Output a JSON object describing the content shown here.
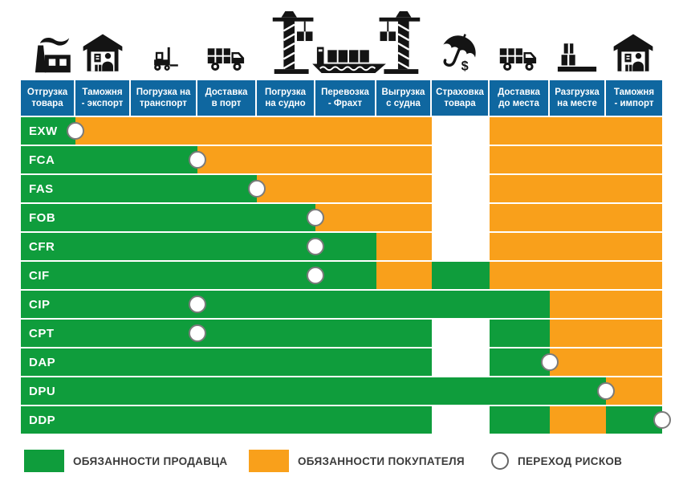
{
  "colors": {
    "seller_green": "#0f9d3c",
    "buyer_orange": "#f9a01b",
    "header_blue": "#0f67a0",
    "uncovered_white": "#ffffff",
    "risk_circle_border": "#7b7b7b",
    "icon_black": "#141414",
    "legend_text": "#3b3b3b"
  },
  "header": {
    "columns": [
      {
        "label": "Отгрузка\nтовара"
      },
      {
        "label": "Таможня\n- экспорт"
      },
      {
        "label": "Погрузка на\nтранспорт"
      },
      {
        "label": "Доставка\nв порт"
      },
      {
        "label": "Погрузка\nна судно"
      },
      {
        "label": "Перевозка\n- Фрахт"
      },
      {
        "label": "Выгрузка\nс судна"
      },
      {
        "label": "Страховка\nтовара"
      },
      {
        "label": "Доставка\nдо места"
      },
      {
        "label": "Разгрузка\nна месте"
      },
      {
        "label": "Таможня\n- импорт"
      }
    ]
  },
  "icons": [
    "factory-icon",
    "customs-export-warehouse-icon",
    "forklift-icon",
    "delivery-truck-icon",
    "port-crane-icon",
    "container-ship-icon",
    "port-crane-icon",
    "insurance-umbrella-dollar-icon",
    "delivery-truck-icon",
    "cargo-boxes-icon",
    "customs-import-warehouse-icon"
  ],
  "rows": [
    {
      "code": "EXW",
      "cells": [
        "S",
        "B",
        "B",
        "B",
        "B",
        "B",
        "B",
        "N",
        "B",
        "B",
        "B"
      ],
      "risk_after": 1
    },
    {
      "code": "FCA",
      "cells": [
        "S",
        "S",
        "S",
        "B",
        "B",
        "B",
        "B",
        "N",
        "B",
        "B",
        "B"
      ],
      "risk_after": 3
    },
    {
      "code": "FAS",
      "cells": [
        "S",
        "S",
        "S",
        "S",
        "B",
        "B",
        "B",
        "N",
        "B",
        "B",
        "B"
      ],
      "risk_after": 4
    },
    {
      "code": "FOB",
      "cells": [
        "S",
        "S",
        "S",
        "S",
        "S",
        "B",
        "B",
        "N",
        "B",
        "B",
        "B"
      ],
      "risk_after": 5
    },
    {
      "code": "CFR",
      "cells": [
        "S",
        "S",
        "S",
        "S",
        "S",
        "S",
        "B",
        "N",
        "B",
        "B",
        "B"
      ],
      "risk_after": 5
    },
    {
      "code": "CIF",
      "cells": [
        "S",
        "S",
        "S",
        "S",
        "S",
        "S",
        "B",
        "S",
        "B",
        "B",
        "B"
      ],
      "risk_after": 5
    },
    {
      "code": "CIP",
      "cells": [
        "S",
        "S",
        "S",
        "S",
        "S",
        "S",
        "S",
        "S",
        "S",
        "B",
        "B"
      ],
      "risk_after": 3
    },
    {
      "code": "CPT",
      "cells": [
        "S",
        "S",
        "S",
        "S",
        "S",
        "S",
        "S",
        "N",
        "S",
        "B",
        "B"
      ],
      "risk_after": 3
    },
    {
      "code": "DAP",
      "cells": [
        "S",
        "S",
        "S",
        "S",
        "S",
        "S",
        "S",
        "N",
        "S",
        "B",
        "B"
      ],
      "risk_after": 9
    },
    {
      "code": "DPU",
      "cells": [
        "S",
        "S",
        "S",
        "S",
        "S",
        "S",
        "S",
        "S",
        "S",
        "S",
        "B"
      ],
      "risk_after": 10
    },
    {
      "code": "DDP",
      "cells": [
        "S",
        "S",
        "S",
        "S",
        "S",
        "S",
        "S",
        "N",
        "S",
        "B",
        "S"
      ],
      "risk_after": 11
    }
  ],
  "legend": {
    "seller": "ОБЯЗАННОСТИ ПРОДАВЦА",
    "buyer": "ОБЯЗАННОСТИ ПОКУПАТЕЛЯ",
    "risk": "ПЕРЕХОД РИСКОВ"
  },
  "chart_data": {
    "type": "heatmap",
    "title": "",
    "columns": [
      "Отгрузка товара",
      "Таможня - экспорт",
      "Погрузка на транспорт",
      "Доставка в порт",
      "Погрузка на судно",
      "Перевозка - Фрахт",
      "Выгрузка с судна",
      "Страховка товара",
      "Доставка до места",
      "Разгрузка на месте",
      "Таможня - импорт"
    ],
    "rows": [
      "EXW",
      "FCA",
      "FAS",
      "FOB",
      "CFR",
      "CIF",
      "CIP",
      "CPT",
      "DAP",
      "DPU",
      "DDP"
    ],
    "cell_value_key": {
      "S": "обязанности продавца (зелёный)",
      "B": "обязанности покупателя (оранжевый)",
      "N": "не покрыто (белый)"
    },
    "matrix": [
      [
        "S",
        "B",
        "B",
        "B",
        "B",
        "B",
        "B",
        "N",
        "B",
        "B",
        "B"
      ],
      [
        "S",
        "S",
        "S",
        "B",
        "B",
        "B",
        "B",
        "N",
        "B",
        "B",
        "B"
      ],
      [
        "S",
        "S",
        "S",
        "S",
        "B",
        "B",
        "B",
        "N",
        "B",
        "B",
        "B"
      ],
      [
        "S",
        "S",
        "S",
        "S",
        "S",
        "B",
        "B",
        "N",
        "B",
        "B",
        "B"
      ],
      [
        "S",
        "S",
        "S",
        "S",
        "S",
        "S",
        "B",
        "N",
        "B",
        "B",
        "B"
      ],
      [
        "S",
        "S",
        "S",
        "S",
        "S",
        "S",
        "B",
        "S",
        "B",
        "B",
        "B"
      ],
      [
        "S",
        "S",
        "S",
        "S",
        "S",
        "S",
        "S",
        "S",
        "S",
        "B",
        "B"
      ],
      [
        "S",
        "S",
        "S",
        "S",
        "S",
        "S",
        "S",
        "N",
        "S",
        "B",
        "B"
      ],
      [
        "S",
        "S",
        "S",
        "S",
        "S",
        "S",
        "S",
        "N",
        "S",
        "B",
        "B"
      ],
      [
        "S",
        "S",
        "S",
        "S",
        "S",
        "S",
        "S",
        "S",
        "S",
        "S",
        "B"
      ],
      [
        "S",
        "S",
        "S",
        "S",
        "S",
        "S",
        "S",
        "N",
        "S",
        "B",
        "S"
      ]
    ],
    "risk_transfer_after_column": {
      "EXW": 1,
      "FCA": 3,
      "FAS": 4,
      "FOB": 5,
      "CFR": 5,
      "CIF": 5,
      "CIP": 3,
      "CPT": 3,
      "DAP": 9,
      "DPU": 10,
      "DDP": 11
    },
    "legend_entries": [
      "ОБЯЗАННОСТИ ПРОДАВЦА",
      "ОБЯЗАННОСТИ ПОКУПАТЕЛЯ",
      "ПЕРЕХОД РИСКОВ"
    ],
    "legend_position": "bottom",
    "grid": false
  }
}
